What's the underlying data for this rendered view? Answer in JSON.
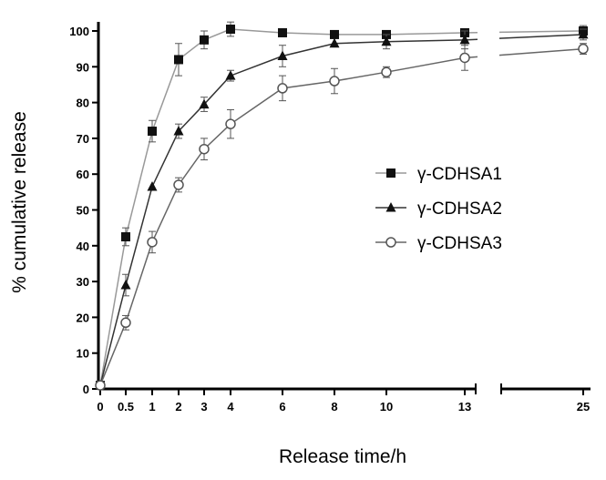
{
  "chart_data": {
    "type": "line",
    "xlabel": "Release time/h",
    "ylabel": "% cumulative release",
    "ylim": [
      0,
      100
    ],
    "yticks": [
      0,
      10,
      20,
      30,
      40,
      50,
      60,
      70,
      80,
      90,
      100
    ],
    "x": [
      0,
      0.5,
      1,
      2,
      3,
      4,
      6,
      8,
      10,
      13,
      25
    ],
    "xtick_labels": [
      "0",
      "0.5",
      "1",
      "2",
      "3",
      "4",
      "6",
      "8",
      "10",
      "13",
      "25"
    ],
    "x_axis_break": [
      13,
      25
    ],
    "grid": false,
    "legend_position": "right",
    "series": [
      {
        "name": "γ-CDHSA1",
        "marker": "filled-square",
        "color": "#999999",
        "values": [
          1,
          42.5,
          72,
          92,
          97.5,
          100.5,
          99.5,
          99,
          99,
          99.5,
          100
        ],
        "errors": [
          0,
          2.5,
          3,
          4.5,
          2.5,
          2,
          0,
          0,
          0,
          0,
          1.5
        ]
      },
      {
        "name": "γ-CDHSA2",
        "marker": "filled-triangle",
        "color": "#333333",
        "values": [
          1,
          29,
          56.5,
          72,
          79.5,
          87.5,
          93,
          96.5,
          97,
          97.5,
          99
        ],
        "errors": [
          0,
          3,
          0,
          2,
          2,
          1.5,
          3,
          0,
          2,
          2.5,
          1.5
        ]
      },
      {
        "name": "γ-CDHSA3",
        "marker": "open-circle",
        "color": "#666666",
        "values": [
          1,
          18.5,
          41,
          57,
          67,
          74,
          84,
          86,
          88.5,
          92.5,
          95
        ],
        "errors": [
          0,
          2,
          3,
          2,
          3,
          4,
          3.5,
          3.5,
          1.5,
          3.5,
          1.5
        ]
      }
    ]
  }
}
